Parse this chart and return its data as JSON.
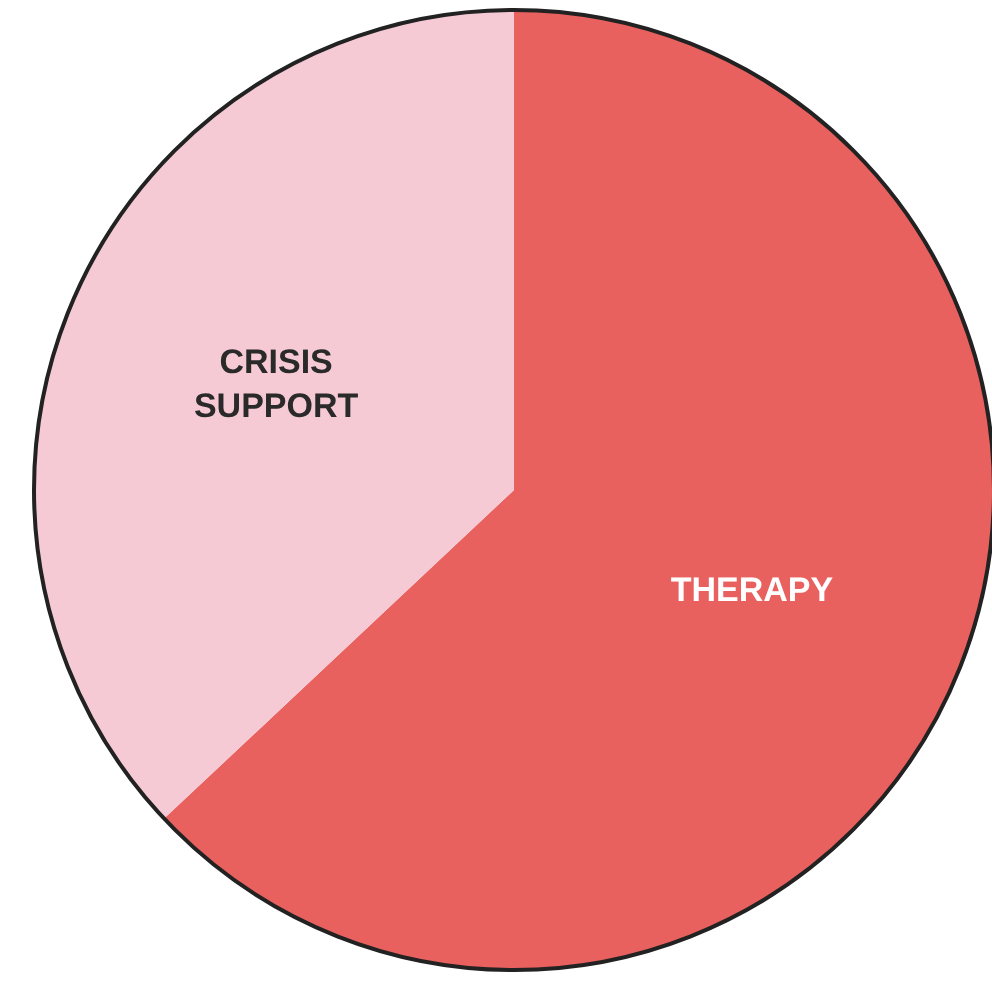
{
  "chart_data": {
    "type": "pie",
    "categories": [
      "THERAPY",
      "CRISIS SUPPORT"
    ],
    "values": [
      63,
      37
    ],
    "colors": [
      "#e8615e",
      "#f6cad5"
    ]
  }
}
